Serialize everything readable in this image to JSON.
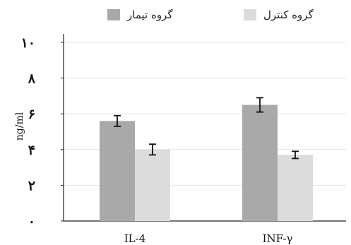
{
  "chart_data": {
    "type": "bar",
    "title": "",
    "xlabel": "",
    "ylabel": "ng/ml",
    "ylim": [
      0,
      10
    ],
    "yticks": [
      0,
      2,
      4,
      6,
      8,
      10
    ],
    "ytick_labels": [
      "۰",
      "۲",
      "۴",
      "۶",
      "۸",
      "۱۰"
    ],
    "categories": [
      "IL-4",
      "INF-γ"
    ],
    "category_labels": [
      "IL-4",
      "INF-γ"
    ],
    "grid": true,
    "legend_position": "top",
    "series": [
      {
        "name": "گروه تیمار",
        "color": "#a9a9a9",
        "values": [
          5.6,
          6.5
        ],
        "errors": [
          0.3,
          0.4
        ]
      },
      {
        "name": "گروه کنترل",
        "color": "#dcdcdc",
        "values": [
          4.0,
          3.7
        ],
        "errors": [
          0.3,
          0.2
        ]
      }
    ]
  }
}
